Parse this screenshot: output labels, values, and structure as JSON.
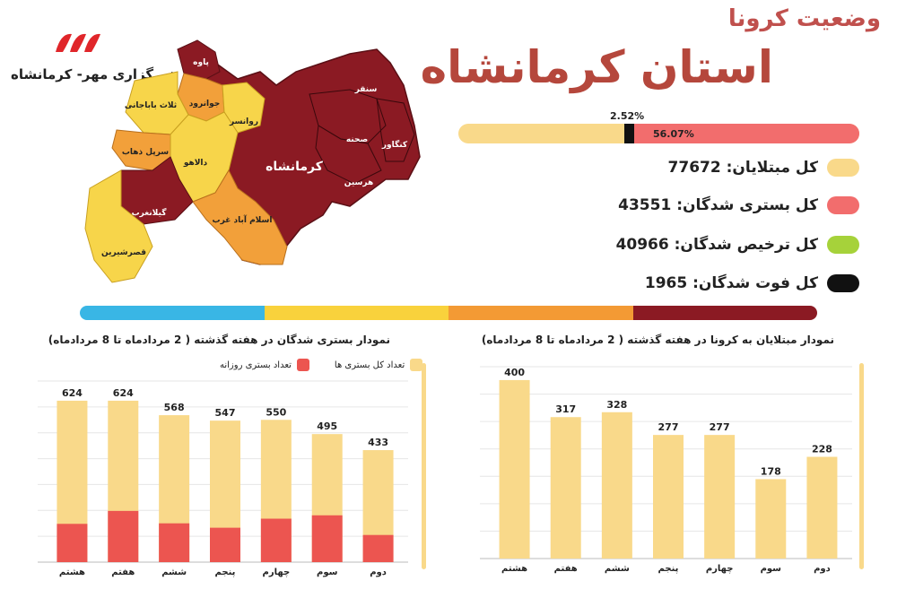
{
  "header": {
    "subtitle": "وضعیت کرونا",
    "title": "استان کرمانشاه",
    "agency": "خبرگزاری مهر- کرمانشاه"
  },
  "colors": {
    "yellow": "#f9d98a",
    "red": "#f05c5c",
    "green": "#a6d23a",
    "black": "#111111",
    "map_dark": "#8b1a23",
    "map_orange": "#f2a03a",
    "map_yellow": "#f7d54a",
    "band": [
      "#39b6e5",
      "#f9d23c",
      "#f39a34",
      "#8b1a23"
    ]
  },
  "map": {
    "labels": [
      "پاوه",
      "ثلاث باباجانی",
      "جوانرود",
      "روانسر",
      "سرپل ذهاب",
      "دالاهو",
      "کرمانشاه",
      "سنقر",
      "صحنه",
      "کنگاور",
      "هرسین",
      "گیلانغرب",
      "اسلام آباد غرب",
      "قصرشیرین"
    ]
  },
  "progress": {
    "label_small": "2.52%",
    "label_big": "56.07%",
    "yellow_value": 100,
    "black_value": 2.52,
    "red_value": 56.07
  },
  "stats": [
    {
      "label": "کل مبتلایان: 77672",
      "color": "#f9d98a"
    },
    {
      "label": "کل بستری شدگان: 43551",
      "color": "#f26d6d"
    },
    {
      "label": "کل ترخیص شدگان: 40966",
      "color": "#a6d23a"
    },
    {
      "label": "کل فوت شدگان: 1965",
      "color": "#111111"
    }
  ],
  "chart_data": [
    {
      "type": "bar",
      "title": "نمودار بستری شدگان در هفته گذشته ( 2 مردادماه تا 8 مردادماه)",
      "categories": [
        "هشتم",
        "هفتم",
        "ششم",
        "پنجم",
        "چهارم",
        "سوم",
        "دوم"
      ],
      "series": [
        {
          "name": "تعداد کل بستری ها",
          "values": [
            624,
            624,
            568,
            547,
            550,
            495,
            433
          ],
          "color": "#f9d98a"
        },
        {
          "name": "تعداد بستری روزانه",
          "values": [
            148,
            198,
            150,
            133,
            168,
            181,
            105
          ],
          "color": "#ec5550"
        }
      ],
      "ylim": [
        0,
        700
      ],
      "grid": true,
      "legend": "top"
    },
    {
      "type": "bar",
      "title": "نمودار مبتلایان به کرونا در هفته گذشته ( 2 مردادماه تا 8 مردادماه)",
      "categories": [
        "هشتم",
        "هفتم",
        "ششم",
        "پنجم",
        "چهارم",
        "سوم",
        "دوم"
      ],
      "series": [
        {
          "values": [
            400,
            317,
            328,
            277,
            277,
            178,
            228
          ],
          "color": "#f9d98a"
        }
      ],
      "ylim": [
        0,
        430
      ],
      "grid": true
    }
  ]
}
